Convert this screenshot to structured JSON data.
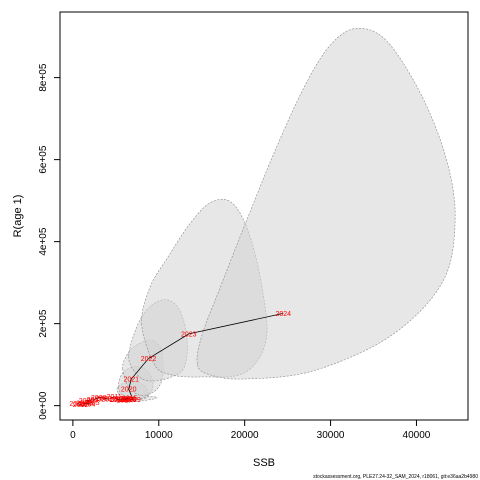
{
  "chart_data": {
    "type": "scatter",
    "title": "",
    "xlabel": "SSB",
    "ylabel": "R(age 1)",
    "xlim": [
      -1500,
      46000
    ],
    "ylim": [
      -35000,
      960000
    ],
    "xticks": [
      0,
      10000,
      20000,
      30000,
      40000
    ],
    "xtick_labels": [
      "0",
      "10000",
      "20000",
      "30000",
      "40000"
    ],
    "yticks": [
      0,
      200000,
      400000,
      600000,
      800000
    ],
    "ytick_labels": [
      "0e+00",
      "2e+05",
      "4e+05",
      "6e+05",
      "8e+05"
    ],
    "grid": false,
    "legend": "none",
    "line_color": "#000000",
    "label_color": "#ff0000",
    "ellipse_fill": "#d3d3d3",
    "ellipse_stroke": "#888888",
    "points": [
      {
        "year": "2001",
        "ssb": 500,
        "rec": 5000
      },
      {
        "year": "2002",
        "ssb": 900,
        "rec": 3000
      },
      {
        "year": "2003",
        "ssb": 1300,
        "rec": 6000
      },
      {
        "year": "2004",
        "ssb": 1700,
        "rec": 4000
      },
      {
        "year": "2005",
        "ssb": 2200,
        "rec": 8000
      },
      {
        "year": "2006",
        "ssb": 1600,
        "rec": 12000
      },
      {
        "year": "2007",
        "ssb": 2500,
        "rec": 15000
      },
      {
        "year": "2008",
        "ssb": 3000,
        "rec": 20000
      },
      {
        "year": "2009",
        "ssb": 3600,
        "rec": 18000
      },
      {
        "year": "2010",
        "ssb": 4200,
        "rec": 16000
      },
      {
        "year": "2011",
        "ssb": 4800,
        "rec": 22000
      },
      {
        "year": "2012",
        "ssb": 5200,
        "rec": 15000
      },
      {
        "year": "2013",
        "ssb": 5800,
        "rec": 17000
      },
      {
        "year": "2014",
        "ssb": 6300,
        "rec": 16000
      },
      {
        "year": "2015",
        "ssb": 6600,
        "rec": 19000
      },
      {
        "year": "2016",
        "ssb": 5500,
        "rec": 16000
      },
      {
        "year": "2017",
        "ssb": 6000,
        "rec": 14000
      },
      {
        "year": "2018",
        "ssb": 6500,
        "rec": 16000
      },
      {
        "year": "2019",
        "ssb": 7000,
        "rec": 15000
      },
      {
        "year": "2020",
        "ssb": 6500,
        "rec": 40000
      },
      {
        "year": "2021",
        "ssb": 6800,
        "rec": 65000
      },
      {
        "year": "2022",
        "ssb": 8800,
        "rec": 115000
      },
      {
        "year": "2023",
        "ssb": 13500,
        "rec": 175000
      },
      {
        "year": "2024",
        "ssb": 24500,
        "rec": 225000
      }
    ],
    "ellipses": [
      {
        "year": "2019",
        "points": [
          [
            5200,
            14000
          ],
          [
            6500,
            9000
          ],
          [
            8800,
            14000
          ],
          [
            9800,
            20000
          ],
          [
            8000,
            24000
          ],
          [
            6000,
            22000
          ],
          [
            4800,
            18000
          ]
        ]
      },
      {
        "year": "2020",
        "points": [
          [
            5300,
            30000
          ],
          [
            6000,
            18000
          ],
          [
            7300,
            14000
          ],
          [
            8700,
            22000
          ],
          [
            8500,
            45000
          ],
          [
            7400,
            58000
          ],
          [
            6000,
            55000
          ],
          [
            5200,
            45000
          ]
        ]
      },
      {
        "year": "2021",
        "points": [
          [
            5300,
            45000
          ],
          [
            6000,
            22000
          ],
          [
            7500,
            15000
          ],
          [
            9000,
            30000
          ],
          [
            9300,
            60000
          ],
          [
            8500,
            88000
          ],
          [
            7200,
            95000
          ],
          [
            5800,
            80000
          ]
        ]
      },
      {
        "year": "2022",
        "points": [
          [
            5800,
            90000
          ],
          [
            6500,
            45000
          ],
          [
            8000,
            25000
          ],
          [
            9800,
            40000
          ],
          [
            10500,
            80000
          ],
          [
            10200,
            140000
          ],
          [
            9000,
            160000
          ],
          [
            7200,
            145000
          ],
          [
            6200,
            120000
          ]
        ]
      },
      {
        "year": "2023",
        "points": [
          [
            6500,
            120000
          ],
          [
            7500,
            75000
          ],
          [
            9000,
            60000
          ],
          [
            11500,
            70000
          ],
          [
            13000,
            95000
          ],
          [
            13300,
            160000
          ],
          [
            12500,
            230000
          ],
          [
            11000,
            258000
          ],
          [
            9200,
            245000
          ],
          [
            7600,
            200000
          ]
        ]
      },
      {
        "year": "2022b",
        "points": [
          [
            8000,
            200000
          ],
          [
            9500,
            100000
          ],
          [
            11500,
            75000
          ],
          [
            15000,
            70000
          ],
          [
            20000,
            80000
          ],
          [
            22500,
            160000
          ],
          [
            22000,
            290000
          ],
          [
            20500,
            420000
          ],
          [
            18500,
            495000
          ],
          [
            16000,
            495000
          ],
          [
            13500,
            440000
          ],
          [
            11000,
            360000
          ],
          [
            9000,
            290000
          ]
        ]
      },
      {
        "year": "2024",
        "points": [
          [
            14500,
            100000
          ],
          [
            16000,
            75000
          ],
          [
            20000,
            65000
          ],
          [
            28000,
            85000
          ],
          [
            37000,
            170000
          ],
          [
            43000,
            300000
          ],
          [
            44500,
            450000
          ],
          [
            43500,
            600000
          ],
          [
            40500,
            760000
          ],
          [
            36500,
            890000
          ],
          [
            33000,
            920000
          ],
          [
            30000,
            880000
          ],
          [
            27000,
            780000
          ],
          [
            23500,
            620000
          ],
          [
            20000,
            440000
          ],
          [
            17000,
            280000
          ],
          [
            15000,
            170000
          ]
        ]
      }
    ]
  },
  "footer": {
    "text": "stockassessment.org, PLE27.24-32_SAM_2024, r18061, git:e36aa2b4980"
  }
}
